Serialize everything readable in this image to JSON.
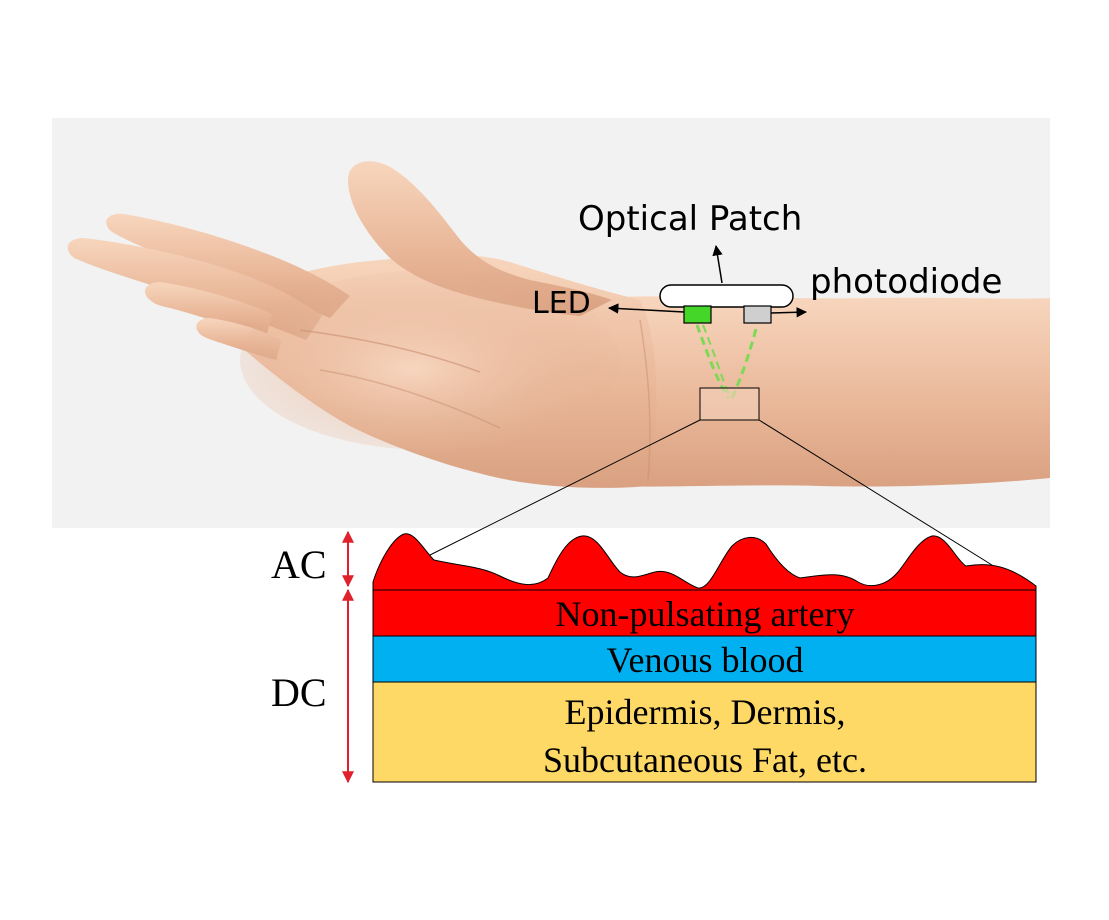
{
  "labels": {
    "optical_patch": "Optical Patch",
    "led": "LED",
    "photodiode": "photodiode",
    "ac": "AC",
    "dc": "DC"
  },
  "layers": {
    "artery": "Non-pulsating artery",
    "venous": "Venous blood",
    "tissue_line1": "Epidermis, Dermis,",
    "tissue_line2": "Subcutaneous Fat, etc."
  },
  "colors": {
    "photo_background": "#f2f2f2",
    "skin_light": "#f7d6bd",
    "skin_mid": "#eab89a",
    "skin_dark": "#d9a181",
    "patch_body": "#ffffff",
    "led_green": "#45d62a",
    "photodiode_gray": "#cfcfcf",
    "light_path_green": "#7ed957",
    "pulsatile_red": "#ff0000",
    "artery_red": "#ff0000",
    "venous_blue": "#00b0f0",
    "tissue_yellow": "#ffd966",
    "arrow_red": "#e0202a",
    "line_black": "#000000"
  }
}
